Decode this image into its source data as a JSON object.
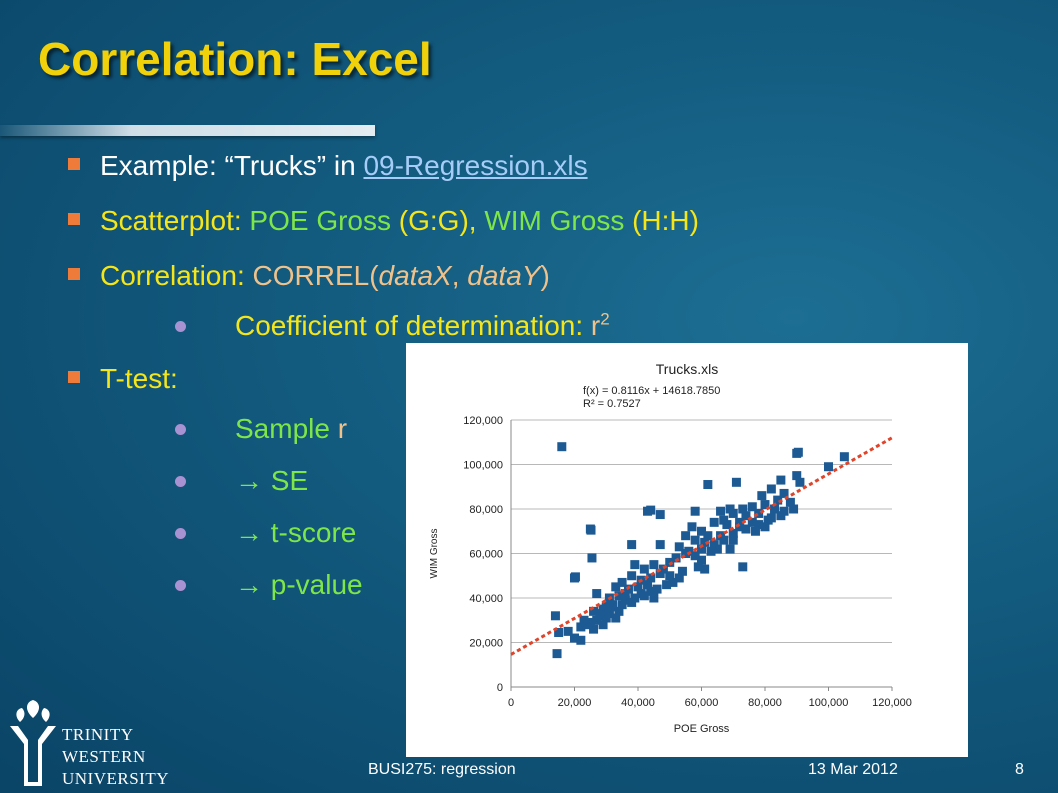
{
  "title": "Correlation: Excel",
  "bullets": {
    "b1": {
      "label": "Example: ",
      "quote": "“Trucks” in ",
      "link": "09-Regression.xls"
    },
    "b2": {
      "label": "Scatterplot: ",
      "v1": "POE Gross",
      "r1": " (G:G), ",
      "v2": "WIM Gross",
      "r2": " (H:H)"
    },
    "b3": {
      "label": "Correlation: ",
      "fn": "CORREL(",
      "a1": "dataX",
      "sep": ", ",
      "a2": "dataY",
      "close": ")"
    },
    "b3a": {
      "text": "Coefficient of determination: ",
      "sym": "r",
      "exp": "2"
    },
    "b4": {
      "label": "T-test:"
    },
    "b4a": {
      "word": "Sample ",
      "sym": "r"
    },
    "b4b": {
      "text": "→ SE"
    },
    "b4c": {
      "text": "→ t-score"
    },
    "b4d": {
      "text": "→ p-value"
    }
  },
  "logo": {
    "line1": "TRINITY",
    "line2": "WESTERN",
    "line3": "UNIVERSITY"
  },
  "footer": {
    "course": "BUSI275: regression",
    "date": "13 Mar 2012",
    "page": "8"
  },
  "colors": {
    "title": "#f0d10a",
    "marker": "#1d5a93",
    "trend": "#e0442a",
    "bullet_square": "#ee7b3a",
    "bullet_dot": "#a892d2"
  },
  "chart_data": {
    "type": "scatter",
    "title": "Trucks.xls",
    "equation": "f(x) = 0.8116x + 14618.7850",
    "r_squared_label": "R² = 0.7527",
    "xlabel": "POE Gross",
    "ylabel": "WIM Gross",
    "xlim": [
      0,
      120000
    ],
    "ylim": [
      0,
      120000
    ],
    "x_ticks": [
      "0",
      "20,000",
      "40,000",
      "60,000",
      "80,000",
      "100,000",
      "120,000"
    ],
    "y_ticks": [
      "0",
      "20,000",
      "40,000",
      "60,000",
      "80,000",
      "100,000",
      "120,000"
    ],
    "trendline": {
      "slope": 0.8116,
      "intercept": 14618.785
    },
    "grid": "horizontal",
    "points": [
      [
        16000,
        108000
      ],
      [
        90000,
        105000
      ],
      [
        90500,
        105500
      ],
      [
        105000,
        103500
      ],
      [
        100000,
        99000
      ],
      [
        85000,
        93000
      ],
      [
        90000,
        95000
      ],
      [
        91000,
        92000
      ],
      [
        71000,
        92000
      ],
      [
        62000,
        91000
      ],
      [
        82000,
        89000
      ],
      [
        79000,
        86000
      ],
      [
        86000,
        87000
      ],
      [
        84000,
        84000
      ],
      [
        88000,
        83000
      ],
      [
        80000,
        82000
      ],
      [
        76000,
        81000
      ],
      [
        73000,
        80000
      ],
      [
        69000,
        80000
      ],
      [
        66000,
        79000
      ],
      [
        43000,
        79000
      ],
      [
        44000,
        79500
      ],
      [
        47000,
        77500
      ],
      [
        58000,
        79000
      ],
      [
        70000,
        78000
      ],
      [
        74000,
        77000
      ],
      [
        78000,
        78000
      ],
      [
        83000,
        80000
      ],
      [
        86000,
        79000
      ],
      [
        89000,
        80000
      ],
      [
        81000,
        75000
      ],
      [
        76000,
        74000
      ],
      [
        72000,
        72000
      ],
      [
        68000,
        73000
      ],
      [
        64000,
        74000
      ],
      [
        57000,
        72000
      ],
      [
        60000,
        70000
      ],
      [
        62000,
        68000
      ],
      [
        66000,
        68000
      ],
      [
        70000,
        69000
      ],
      [
        74000,
        71000
      ],
      [
        78000,
        73000
      ],
      [
        82000,
        76000
      ],
      [
        85000,
        77000
      ],
      [
        80000,
        72000
      ],
      [
        25000,
        71000
      ],
      [
        25200,
        70500
      ],
      [
        55000,
        68000
      ],
      [
        58000,
        66000
      ],
      [
        61000,
        65000
      ],
      [
        64000,
        64000
      ],
      [
        67000,
        66000
      ],
      [
        69000,
        62000
      ],
      [
        63000,
        61000
      ],
      [
        60000,
        62000
      ],
      [
        56000,
        61000
      ],
      [
        53000,
        63000
      ],
      [
        47000,
        64000
      ],
      [
        38000,
        64000
      ],
      [
        25500,
        58000
      ],
      [
        55000,
        60000
      ],
      [
        52000,
        58000
      ],
      [
        50000,
        56000
      ],
      [
        48000,
        53000
      ],
      [
        45000,
        55000
      ],
      [
        42000,
        53000
      ],
      [
        39000,
        55000
      ],
      [
        60000,
        57000
      ],
      [
        59000,
        54000
      ],
      [
        61000,
        53000
      ],
      [
        73000,
        54000
      ],
      [
        47000,
        51000
      ],
      [
        44000,
        49000
      ],
      [
        41000,
        48000
      ],
      [
        38000,
        50000
      ],
      [
        20000,
        49000
      ],
      [
        20300,
        49500
      ],
      [
        35000,
        47000
      ],
      [
        53000,
        49000
      ],
      [
        51000,
        47000
      ],
      [
        49000,
        46000
      ],
      [
        43000,
        46000
      ],
      [
        40000,
        45000
      ],
      [
        37000,
        44000
      ],
      [
        33000,
        45000
      ],
      [
        44000,
        43000
      ],
      [
        41000,
        42000
      ],
      [
        46000,
        44000
      ],
      [
        27000,
        42000
      ],
      [
        39000,
        40000
      ],
      [
        36000,
        39000
      ],
      [
        34000,
        41000
      ],
      [
        31000,
        40000
      ],
      [
        42000,
        41000
      ],
      [
        38000,
        38000
      ],
      [
        45000,
        40000
      ],
      [
        30000,
        36000
      ],
      [
        34000,
        34000
      ],
      [
        32000,
        37000
      ],
      [
        29000,
        35000
      ],
      [
        26000,
        34000
      ],
      [
        31000,
        33000
      ],
      [
        28000,
        32000
      ],
      [
        14000,
        32000
      ],
      [
        33000,
        31000
      ],
      [
        30000,
        31000
      ],
      [
        27000,
        30000
      ],
      [
        24000,
        28000
      ],
      [
        22000,
        27000
      ],
      [
        29000,
        28000
      ],
      [
        26000,
        26000
      ],
      [
        25000,
        29000
      ],
      [
        20000,
        22000
      ],
      [
        22000,
        21000
      ],
      [
        15000,
        24500
      ],
      [
        18000,
        25000
      ],
      [
        32000,
        36000
      ],
      [
        28000,
        33000
      ],
      [
        14500,
        15000
      ],
      [
        70000,
        66000
      ],
      [
        65000,
        62000
      ],
      [
        72000,
        74000
      ],
      [
        77000,
        70000
      ],
      [
        67000,
        75000
      ],
      [
        58000,
        59000
      ],
      [
        54000,
        52000
      ],
      [
        50000,
        50000
      ],
      [
        36000,
        42000
      ],
      [
        35000,
        37000
      ],
      [
        23000,
        30000
      ]
    ]
  }
}
